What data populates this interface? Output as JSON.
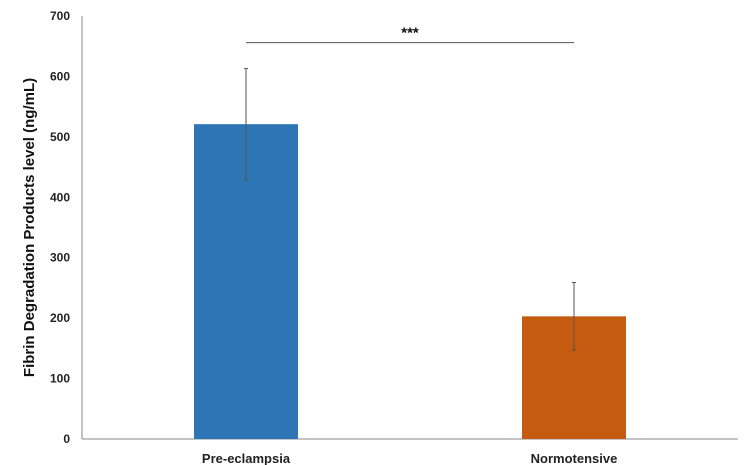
{
  "chart_data": {
    "type": "bar",
    "title": "",
    "xlabel": "",
    "ylabel": "Fibrin Degradation Products level (ng/mL)",
    "ylim": [
      0,
      700
    ],
    "yticks": [
      0,
      100,
      200,
      300,
      400,
      500,
      600,
      700
    ],
    "grid": false,
    "legend": "none",
    "categories": [
      "Pre-eclampsia",
      "Normotensive"
    ],
    "values": [
      521,
      203
    ],
    "error": [
      92,
      56
    ],
    "colors": [
      "#2E75B6",
      "#C55A11"
    ],
    "significance": {
      "label": "***",
      "between": [
        "Pre-eclampsia",
        "Normotensive"
      ],
      "level": 656
    }
  }
}
